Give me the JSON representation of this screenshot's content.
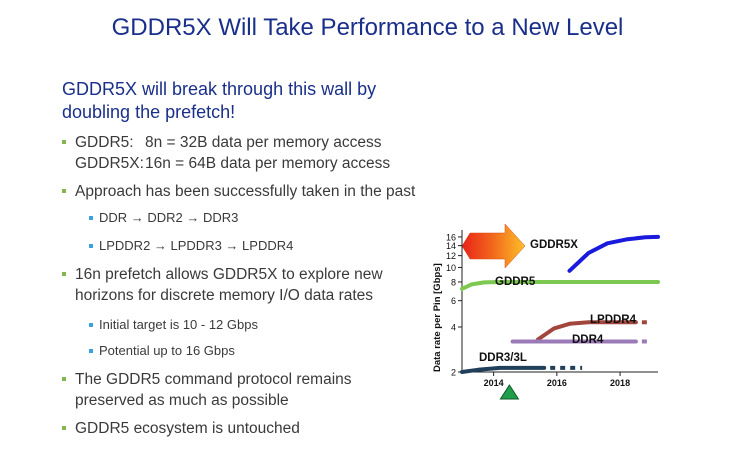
{
  "slide": {
    "title": "GDDR5X Will Take Performance to a New Level",
    "intro": "GDDR5X will break through this wall by doubling the prefetch!",
    "bullets": {
      "b1_l1_label": "GDDR5:",
      "b1_l1_value": "8n = 32B data per memory access",
      "b1_l2_label": "GDDR5X:",
      "b1_l2_value": "16n = 64B data per memory access",
      "b2": "Approach has been successfully taken in the past",
      "b2_s1": "DDR → DDR2 → DDR3",
      "b2_s2": "LPDDR2 → LPDDR3 → LPDDR4",
      "b3_l1": "16n prefetch allows GDDR5X to explore new",
      "b3_l2": "horizons for discrete memory I/O data rates",
      "b3_s1": "Initial target is 10 - 12 Gbps",
      "b3_s2": "Potential up to 16 Gbps",
      "b4_l1": "The GDDR5 command protocol remains",
      "b4_l2": "preserved as much as possible",
      "b5": "GDDR5 ecosystem is untouched"
    }
  },
  "chart_data": {
    "type": "line",
    "title": "",
    "xlabel": "",
    "ylabel": "Data rate per Pin [Gbps]",
    "y_scale": "log",
    "ylim": [
      2,
      17
    ],
    "xlim": [
      2013.0,
      2019.2
    ],
    "x_ticks": [
      2014,
      2016,
      2018
    ],
    "y_ticks": [
      2,
      4,
      6,
      8,
      10,
      12,
      14,
      16
    ],
    "series": [
      {
        "name": "GDDR5X",
        "color": "#1a1adc",
        "x": [
          2016.4,
          2017.0,
          2017.6,
          2018.2,
          2018.8,
          2019.2
        ],
        "y": [
          9.5,
          12.5,
          14.5,
          15.4,
          15.9,
          16.0
        ]
      },
      {
        "name": "GDDR5",
        "color": "#7dc850",
        "x": [
          2013.0,
          2013.3,
          2013.7,
          2014.2,
          2019.2
        ],
        "y": [
          7.2,
          7.7,
          7.95,
          8.0,
          8.0
        ]
      },
      {
        "name": "LPDDR4",
        "color": "#a0463c",
        "x": [
          2015.4,
          2015.9,
          2016.4,
          2017.0,
          2018.5
        ],
        "y": [
          3.3,
          3.9,
          4.2,
          4.3,
          4.3
        ],
        "dashed_to": 2019.0
      },
      {
        "name": "DDR4",
        "color": "#9b7ab8",
        "x": [
          2014.6,
          2018.5
        ],
        "y": [
          3.2,
          3.2
        ],
        "dashed_to": 2019.0
      },
      {
        "name": "DDR3/3L",
        "color": "#1f3f5a",
        "x": [
          2013.0,
          2013.5,
          2014.2,
          2015.6
        ],
        "y": [
          2.0,
          2.07,
          2.13,
          2.13
        ],
        "dashed_to": 2016.8
      }
    ],
    "annotations": [
      "GDDR5X",
      "GDDR5",
      "LPDDR4",
      "DDR4",
      "DDR3/3L"
    ],
    "marker": {
      "shape": "triangle",
      "color": "#1e9e4a",
      "x": 2014.5
    }
  }
}
